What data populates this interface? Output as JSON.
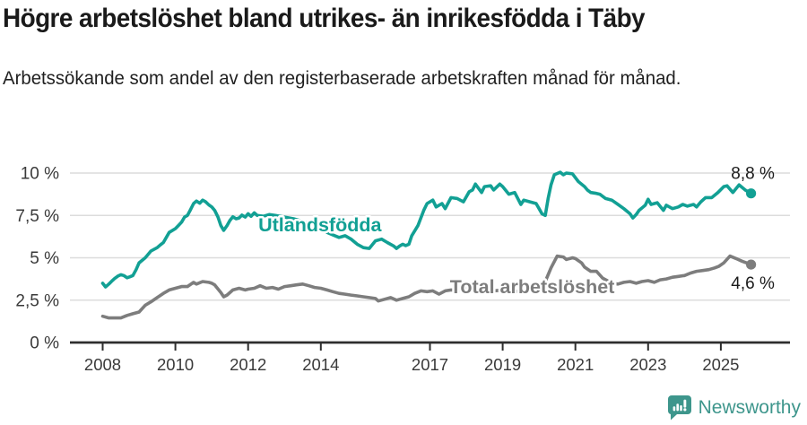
{
  "header": {
    "title": "Högre arbetslöshet bland utrikes- än inrikesfödda i Täby",
    "subtitle": "Arbetssökande som andel av den registerbaserade arbetskraften månad för månad."
  },
  "footer": {
    "brand": "Newsworthy",
    "brand_color": "#3e968c",
    "logo_icon": "speech-bubble-bar-chart-exclamation"
  },
  "chart_data": {
    "type": "line",
    "title": "Högre arbetslöshet bland utrikes- än inrikesfödda i Täby",
    "subtitle": "Arbetssökande som andel av den registerbaserade arbetskraften månad för månad.",
    "unit": "%",
    "grid": true,
    "legend_position": "inline-labels",
    "grid_color": "#dcdcdc",
    "axis_color": "#2e2e2e",
    "tick_label_color": "#3a3a3a",
    "value_label_color": "#1a1a1a",
    "x_axis": {
      "range": [
        2007.1,
        2026.9
      ],
      "ticks": [
        {
          "value": 2008,
          "label": "2008"
        },
        {
          "value": 2010,
          "label": "2010"
        },
        {
          "value": 2012,
          "label": "2012"
        },
        {
          "value": 2014,
          "label": "2014"
        },
        {
          "value": 2017,
          "label": "2017"
        },
        {
          "value": 2019,
          "label": "2019"
        },
        {
          "value": 2021,
          "label": "2021"
        },
        {
          "value": 2023,
          "label": "2023"
        },
        {
          "value": 2025,
          "label": "2025"
        }
      ]
    },
    "y_axis": {
      "range": [
        0,
        10.5
      ],
      "ticks": [
        {
          "value": 0,
          "label": "0 %"
        },
        {
          "value": 2.5,
          "label": "2,5 %"
        },
        {
          "value": 5,
          "label": "5 %"
        },
        {
          "value": 7.5,
          "label": "7,5 %"
        },
        {
          "value": 10,
          "label": "10 %"
        }
      ]
    },
    "series": [
      {
        "name": "Utlandsfödda",
        "color": "#12a094",
        "end_label": "8,8 %",
        "end_label_side": "above",
        "end_value": 8.8,
        "label_anchor": [
          2012.28,
          6.55
        ],
        "points": [
          [
            2008.0,
            3.5
          ],
          [
            2008.08,
            3.28
          ],
          [
            2008.17,
            3.45
          ],
          [
            2008.25,
            3.62
          ],
          [
            2008.33,
            3.78
          ],
          [
            2008.42,
            3.92
          ],
          [
            2008.5,
            4.0
          ],
          [
            2008.58,
            3.95
          ],
          [
            2008.67,
            3.82
          ],
          [
            2008.75,
            3.88
          ],
          [
            2008.83,
            3.95
          ],
          [
            2008.92,
            4.3
          ],
          [
            2009.0,
            4.7
          ],
          [
            2009.17,
            5.0
          ],
          [
            2009.33,
            5.4
          ],
          [
            2009.5,
            5.6
          ],
          [
            2009.58,
            5.75
          ],
          [
            2009.67,
            5.9
          ],
          [
            2009.83,
            6.5
          ],
          [
            2010.0,
            6.72
          ],
          [
            2010.08,
            6.9
          ],
          [
            2010.17,
            7.1
          ],
          [
            2010.25,
            7.4
          ],
          [
            2010.33,
            7.5
          ],
          [
            2010.42,
            7.85
          ],
          [
            2010.5,
            8.2
          ],
          [
            2010.58,
            8.35
          ],
          [
            2010.67,
            8.22
          ],
          [
            2010.75,
            8.4
          ],
          [
            2010.83,
            8.3
          ],
          [
            2010.92,
            8.12
          ],
          [
            2011.0,
            8.0
          ],
          [
            2011.08,
            7.8
          ],
          [
            2011.17,
            7.4
          ],
          [
            2011.25,
            6.9
          ],
          [
            2011.33,
            6.62
          ],
          [
            2011.42,
            6.9
          ],
          [
            2011.5,
            7.2
          ],
          [
            2011.58,
            7.42
          ],
          [
            2011.67,
            7.3
          ],
          [
            2011.75,
            7.35
          ],
          [
            2011.83,
            7.52
          ],
          [
            2011.92,
            7.4
          ],
          [
            2012.0,
            7.6
          ],
          [
            2012.08,
            7.45
          ],
          [
            2012.17,
            7.65
          ],
          [
            2012.25,
            7.5
          ],
          [
            2012.42,
            7.45
          ],
          [
            2012.58,
            7.55
          ],
          [
            2012.75,
            7.5
          ],
          [
            2013.0,
            7.4
          ],
          [
            2013.25,
            7.3
          ],
          [
            2013.5,
            7.15
          ],
          [
            2013.75,
            7.0
          ],
          [
            2014.0,
            6.7
          ],
          [
            2014.17,
            6.5
          ],
          [
            2014.33,
            6.35
          ],
          [
            2014.5,
            6.2
          ],
          [
            2014.67,
            6.3
          ],
          [
            2014.83,
            6.1
          ],
          [
            2015.0,
            5.8
          ],
          [
            2015.17,
            5.6
          ],
          [
            2015.33,
            5.55
          ],
          [
            2015.5,
            6.0
          ],
          [
            2015.67,
            6.1
          ],
          [
            2015.83,
            5.9
          ],
          [
            2016.0,
            5.7
          ],
          [
            2016.08,
            5.55
          ],
          [
            2016.17,
            5.7
          ],
          [
            2016.25,
            5.8
          ],
          [
            2016.33,
            5.72
          ],
          [
            2016.42,
            5.8
          ],
          [
            2016.5,
            6.3
          ],
          [
            2016.67,
            6.9
          ],
          [
            2016.83,
            7.8
          ],
          [
            2016.92,
            8.2
          ],
          [
            2017.08,
            8.4
          ],
          [
            2017.17,
            8.0
          ],
          [
            2017.33,
            8.2
          ],
          [
            2017.42,
            7.9
          ],
          [
            2017.58,
            8.55
          ],
          [
            2017.75,
            8.5
          ],
          [
            2017.92,
            8.3
          ],
          [
            2018.08,
            8.9
          ],
          [
            2018.17,
            9.0
          ],
          [
            2018.25,
            9.35
          ],
          [
            2018.42,
            8.85
          ],
          [
            2018.5,
            9.2
          ],
          [
            2018.67,
            9.25
          ],
          [
            2018.75,
            9.0
          ],
          [
            2018.92,
            9.35
          ],
          [
            2019.0,
            9.2
          ],
          [
            2019.17,
            8.75
          ],
          [
            2019.33,
            8.85
          ],
          [
            2019.5,
            8.15
          ],
          [
            2019.58,
            8.4
          ],
          [
            2019.75,
            8.3
          ],
          [
            2019.92,
            8.2
          ],
          [
            2020.0,
            7.9
          ],
          [
            2020.08,
            7.6
          ],
          [
            2020.17,
            7.5
          ],
          [
            2020.25,
            8.5
          ],
          [
            2020.33,
            9.3
          ],
          [
            2020.42,
            9.9
          ],
          [
            2020.58,
            10.05
          ],
          [
            2020.67,
            9.9
          ],
          [
            2020.75,
            10.0
          ],
          [
            2020.92,
            9.95
          ],
          [
            2021.08,
            9.5
          ],
          [
            2021.25,
            9.2
          ],
          [
            2021.33,
            9.0
          ],
          [
            2021.42,
            8.85
          ],
          [
            2021.58,
            8.8
          ],
          [
            2021.67,
            8.75
          ],
          [
            2021.83,
            8.5
          ],
          [
            2022.0,
            8.4
          ],
          [
            2022.17,
            8.15
          ],
          [
            2022.33,
            7.9
          ],
          [
            2022.5,
            7.6
          ],
          [
            2022.58,
            7.35
          ],
          [
            2022.67,
            7.55
          ],
          [
            2022.75,
            7.8
          ],
          [
            2022.92,
            8.1
          ],
          [
            2023.0,
            8.45
          ],
          [
            2023.08,
            8.15
          ],
          [
            2023.25,
            8.25
          ],
          [
            2023.42,
            7.8
          ],
          [
            2023.5,
            8.1
          ],
          [
            2023.67,
            7.9
          ],
          [
            2023.83,
            8.0
          ],
          [
            2023.95,
            8.15
          ],
          [
            2024.08,
            8.05
          ],
          [
            2024.25,
            8.15
          ],
          [
            2024.33,
            8.0
          ],
          [
            2024.45,
            8.3
          ],
          [
            2024.58,
            8.55
          ],
          [
            2024.75,
            8.55
          ],
          [
            2024.92,
            8.85
          ],
          [
            2025.08,
            9.2
          ],
          [
            2025.17,
            9.25
          ],
          [
            2025.33,
            8.85
          ],
          [
            2025.5,
            9.3
          ],
          [
            2025.67,
            9.0
          ],
          [
            2025.83,
            8.8
          ]
        ]
      },
      {
        "name": "Total arbetslöshet",
        "color": "#7d7d7d",
        "end_label": "4,6 %",
        "end_label_side": "below",
        "end_value": 4.6,
        "label_anchor": [
          2017.55,
          2.91
        ],
        "points": [
          [
            2008.0,
            1.55
          ],
          [
            2008.17,
            1.45
          ],
          [
            2008.33,
            1.45
          ],
          [
            2008.5,
            1.45
          ],
          [
            2008.67,
            1.6
          ],
          [
            2008.83,
            1.7
          ],
          [
            2009.0,
            1.8
          ],
          [
            2009.17,
            2.2
          ],
          [
            2009.33,
            2.4
          ],
          [
            2009.5,
            2.65
          ],
          [
            2009.67,
            2.9
          ],
          [
            2009.83,
            3.1
          ],
          [
            2010.0,
            3.2
          ],
          [
            2010.17,
            3.3
          ],
          [
            2010.33,
            3.3
          ],
          [
            2010.5,
            3.55
          ],
          [
            2010.58,
            3.45
          ],
          [
            2010.75,
            3.6
          ],
          [
            2010.92,
            3.55
          ],
          [
            2011.0,
            3.5
          ],
          [
            2011.08,
            3.4
          ],
          [
            2011.25,
            2.95
          ],
          [
            2011.33,
            2.7
          ],
          [
            2011.42,
            2.8
          ],
          [
            2011.58,
            3.1
          ],
          [
            2011.75,
            3.2
          ],
          [
            2011.92,
            3.1
          ],
          [
            2012.0,
            3.15
          ],
          [
            2012.17,
            3.2
          ],
          [
            2012.33,
            3.35
          ],
          [
            2012.5,
            3.2
          ],
          [
            2012.67,
            3.25
          ],
          [
            2012.83,
            3.15
          ],
          [
            2013.0,
            3.3
          ],
          [
            2013.17,
            3.35
          ],
          [
            2013.33,
            3.4
          ],
          [
            2013.5,
            3.45
          ],
          [
            2013.67,
            3.35
          ],
          [
            2013.83,
            3.25
          ],
          [
            2014.0,
            3.2
          ],
          [
            2014.17,
            3.1
          ],
          [
            2014.33,
            3.0
          ],
          [
            2014.5,
            2.9
          ],
          [
            2014.67,
            2.85
          ],
          [
            2014.83,
            2.8
          ],
          [
            2015.0,
            2.75
          ],
          [
            2015.17,
            2.7
          ],
          [
            2015.33,
            2.65
          ],
          [
            2015.5,
            2.6
          ],
          [
            2015.58,
            2.45
          ],
          [
            2015.75,
            2.55
          ],
          [
            2015.92,
            2.65
          ],
          [
            2016.08,
            2.5
          ],
          [
            2016.25,
            2.6
          ],
          [
            2016.42,
            2.7
          ],
          [
            2016.58,
            2.9
          ],
          [
            2016.75,
            3.05
          ],
          [
            2016.92,
            3.0
          ],
          [
            2017.08,
            3.05
          ],
          [
            2017.25,
            2.85
          ],
          [
            2017.42,
            3.05
          ],
          [
            2017.58,
            3.1
          ],
          [
            2017.83,
            3.1
          ],
          [
            2018.0,
            3.2
          ],
          [
            2018.25,
            3.15
          ],
          [
            2018.5,
            3.1
          ],
          [
            2018.75,
            3.05
          ],
          [
            2019.0,
            3.1
          ],
          [
            2019.25,
            3.05
          ],
          [
            2019.5,
            3.0
          ],
          [
            2019.75,
            3.05
          ],
          [
            2020.0,
            3.1
          ],
          [
            2020.17,
            3.6
          ],
          [
            2020.33,
            4.4
          ],
          [
            2020.5,
            5.1
          ],
          [
            2020.67,
            5.05
          ],
          [
            2020.75,
            4.9
          ],
          [
            2020.92,
            5.0
          ],
          [
            2021.0,
            4.95
          ],
          [
            2021.17,
            4.7
          ],
          [
            2021.25,
            4.45
          ],
          [
            2021.42,
            4.2
          ],
          [
            2021.58,
            4.2
          ],
          [
            2021.75,
            3.8
          ],
          [
            2021.92,
            3.6
          ],
          [
            2022.0,
            3.5
          ],
          [
            2022.17,
            3.45
          ],
          [
            2022.33,
            3.55
          ],
          [
            2022.5,
            3.6
          ],
          [
            2022.67,
            3.5
          ],
          [
            2022.83,
            3.6
          ],
          [
            2023.0,
            3.65
          ],
          [
            2023.17,
            3.55
          ],
          [
            2023.33,
            3.7
          ],
          [
            2023.5,
            3.75
          ],
          [
            2023.67,
            3.85
          ],
          [
            2023.83,
            3.9
          ],
          [
            2024.0,
            3.95
          ],
          [
            2024.17,
            4.1
          ],
          [
            2024.33,
            4.2
          ],
          [
            2024.5,
            4.25
          ],
          [
            2024.67,
            4.3
          ],
          [
            2024.83,
            4.4
          ],
          [
            2024.95,
            4.5
          ],
          [
            2025.08,
            4.7
          ],
          [
            2025.25,
            5.1
          ],
          [
            2025.42,
            4.95
          ],
          [
            2025.58,
            4.8
          ],
          [
            2025.83,
            4.6
          ]
        ]
      }
    ]
  }
}
